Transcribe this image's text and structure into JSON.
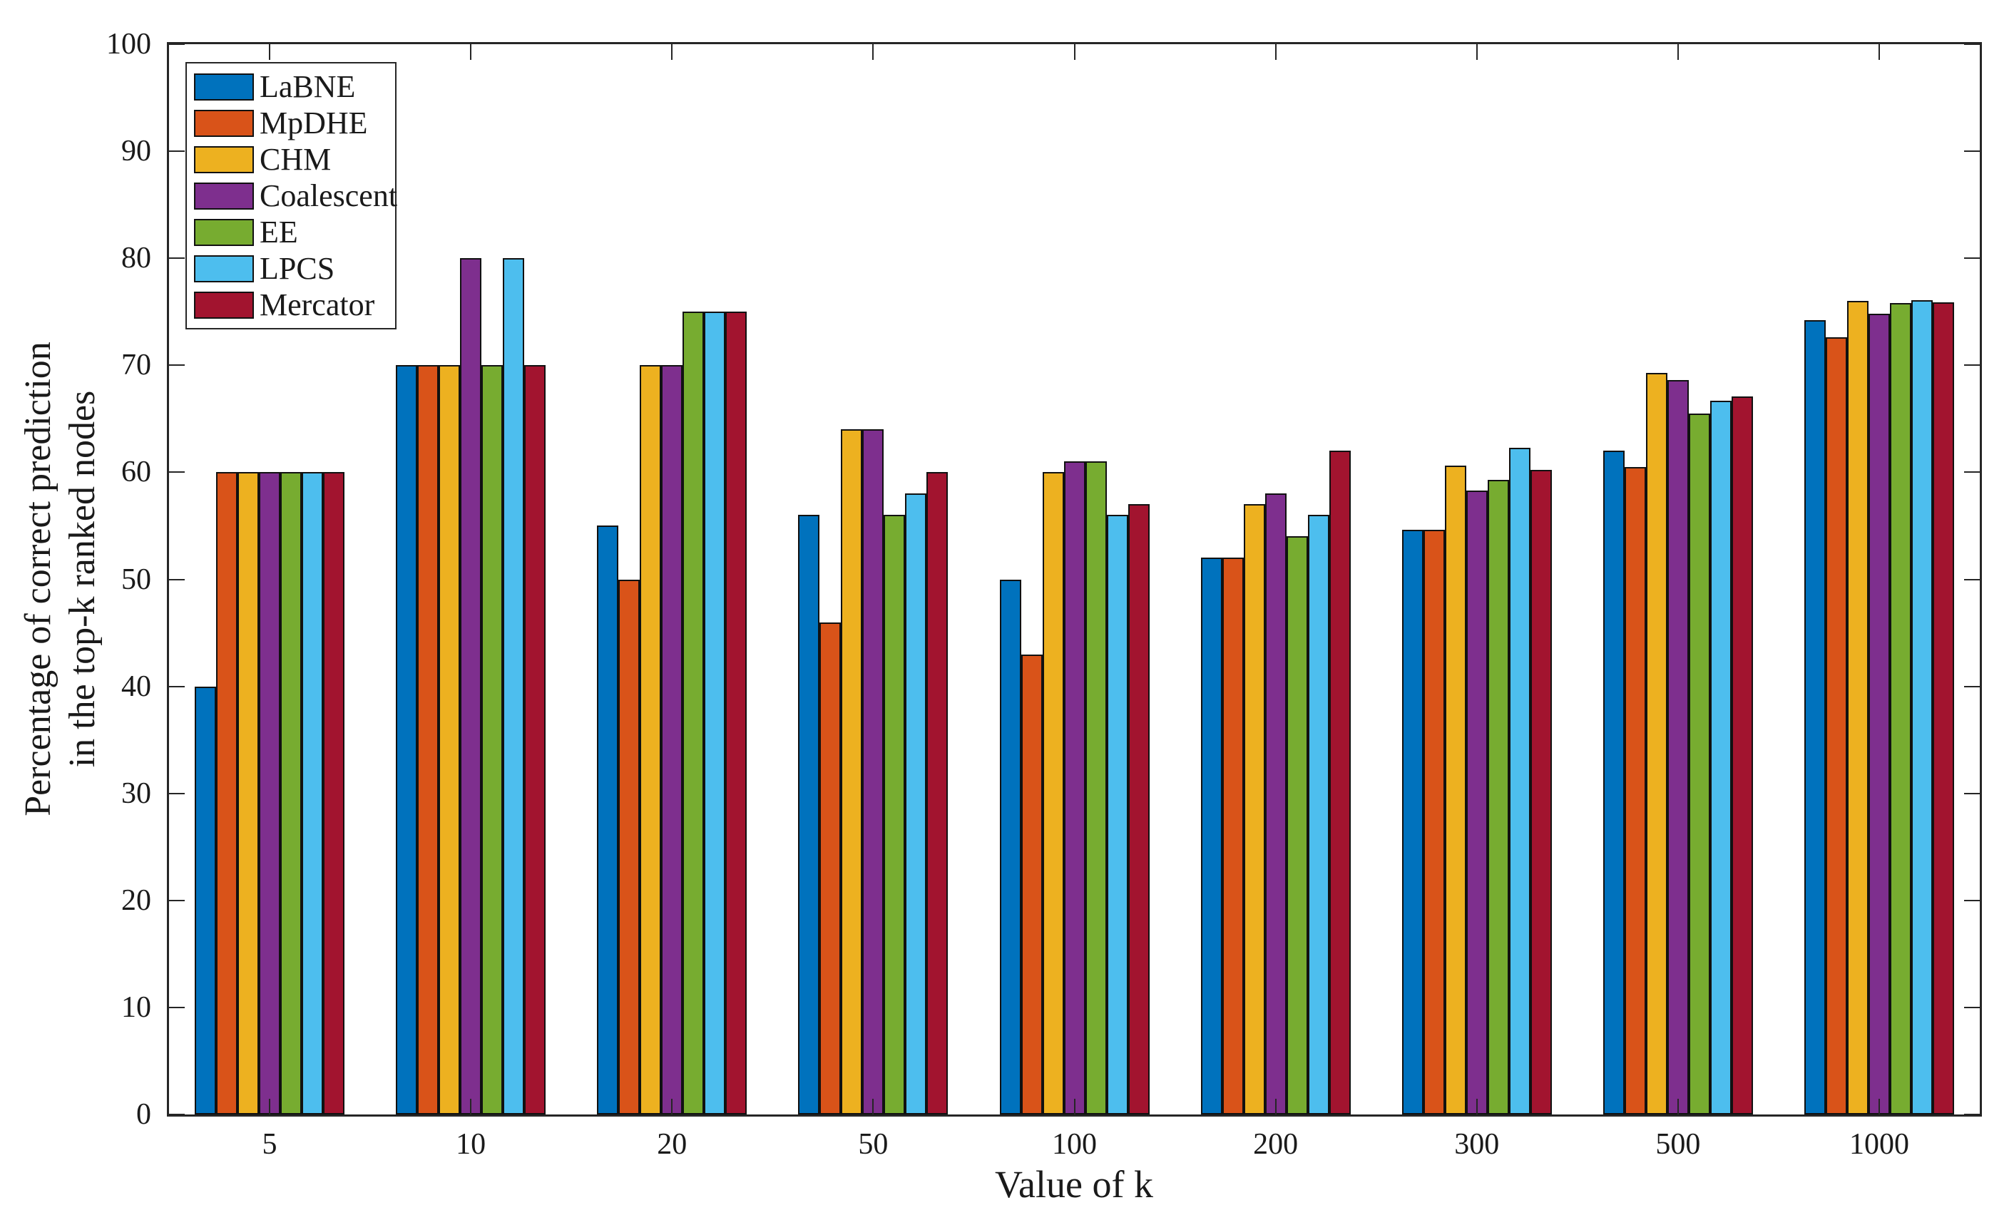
{
  "figure": {
    "background": "#ffffff"
  },
  "axis": {
    "line_color": "#262626",
    "text_color": "#1a1a1a",
    "bar_border_color": "#111111"
  },
  "chart_data": {
    "type": "bar",
    "title": "",
    "xlabel": "Value of k",
    "ylabel": "Percentage of correct prediction in the top-k ranked nodes",
    "ylabel_lines": [
      "Percentage of correct prediction",
      "in the top-k ranked nodes"
    ],
    "categories": [
      "5",
      "10",
      "20",
      "50",
      "100",
      "200",
      "300",
      "500",
      "1000"
    ],
    "series": [
      {
        "name": "LaBNE",
        "color": "#0072BD",
        "values": [
          40,
          70,
          55,
          56,
          50,
          52,
          54.6,
          62.0,
          74.2
        ]
      },
      {
        "name": "MpDHE",
        "color": "#D95319",
        "values": [
          60,
          70,
          50,
          46,
          43,
          52,
          54.6,
          60.5,
          72.6
        ]
      },
      {
        "name": "CHM",
        "color": "#EDB120",
        "values": [
          60,
          70,
          70,
          64,
          60,
          57,
          60.6,
          69.3,
          76.0
        ]
      },
      {
        "name": "Coalescent",
        "color": "#7E2F8E",
        "values": [
          60,
          80,
          70,
          64,
          61,
          58,
          58.3,
          68.6,
          74.8
        ]
      },
      {
        "name": "EE",
        "color": "#77AC30",
        "values": [
          60,
          70,
          75,
          56,
          61,
          54,
          59.3,
          65.5,
          75.8
        ]
      },
      {
        "name": "LPCS",
        "color": "#4DBEEE",
        "values": [
          60,
          80,
          75,
          58,
          56,
          56,
          62.3,
          66.7,
          76.1
        ]
      },
      {
        "name": "Mercator",
        "color": "#A2142F",
        "values": [
          60,
          70,
          75,
          60,
          57,
          62,
          60.2,
          67.1,
          75.9
        ]
      }
    ],
    "ylim": [
      0,
      100
    ],
    "yticks": [
      0,
      10,
      20,
      30,
      40,
      50,
      60,
      70,
      80,
      90,
      100
    ],
    "grid": "off",
    "legend_position": "top-left"
  }
}
